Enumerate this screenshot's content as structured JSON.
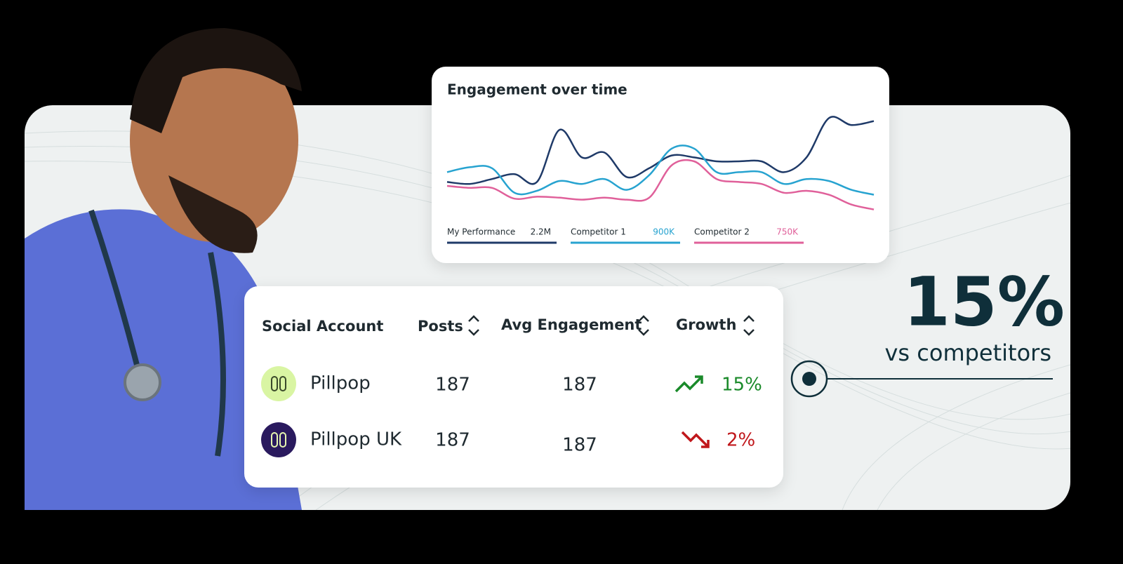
{
  "chart_data": {
    "type": "line",
    "title": "Engagement over time",
    "ylim": [
      0,
      100
    ],
    "series": [
      {
        "name": "My Performance",
        "total_label": "2.2M",
        "color": "#1f3a68",
        "values": [
          29,
          27,
          32,
          37,
          29,
          82,
          54,
          59,
          34,
          43,
          56,
          54,
          50,
          50,
          50,
          39,
          54,
          94,
          87,
          91
        ]
      },
      {
        "name": "Competitor 1",
        "total_label": "900K",
        "color": "#27a3d0",
        "values": [
          39,
          44,
          43,
          18,
          20,
          30,
          27,
          32,
          21,
          36,
          63,
          63,
          39,
          39,
          39,
          27,
          32,
          30,
          21,
          16
        ]
      },
      {
        "name": "Competitor 2",
        "total_label": "750K",
        "color": "#e0609a",
        "values": [
          25,
          23,
          23,
          12,
          14,
          13,
          11,
          13,
          11,
          13,
          46,
          50,
          32,
          29,
          27,
          18,
          20,
          16,
          6,
          1
        ]
      }
    ]
  },
  "table": {
    "headers": [
      "Social Account",
      "Posts",
      "Avg Engagement",
      "Growth"
    ],
    "rows": [
      [
        "Pillpop",
        "187",
        "187",
        "15%"
      ],
      [
        "Pillpop UK",
        "187",
        "187",
        "2%"
      ]
    ]
  },
  "highlight": {
    "value": "15%",
    "caption": "vs competitors"
  }
}
